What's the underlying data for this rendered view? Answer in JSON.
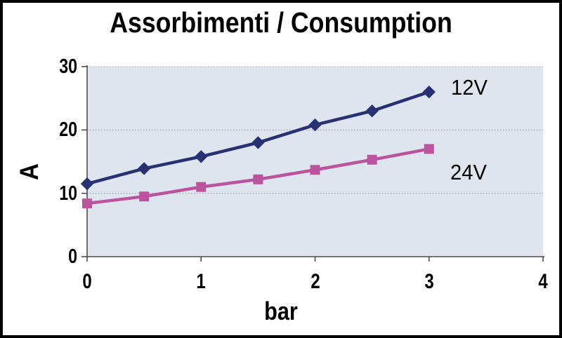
{
  "title": "Assorbimenti / Consumption",
  "colors": {
    "frame_border": "#000000",
    "background": "#ffffff",
    "plot_background": "#dfe5ee",
    "gridline": "#999999",
    "axis": "#4d4d4d",
    "text": "#000000",
    "series_12v": "#283173",
    "series_24v": "#bb549e"
  },
  "chart_data": {
    "type": "line",
    "title": "Assorbimenti / Consumption",
    "xlabel": "bar",
    "ylabel": "A",
    "xlim": [
      0,
      4
    ],
    "ylim": [
      0,
      30
    ],
    "x_ticks": [
      "0",
      "1",
      "2",
      "3",
      "4"
    ],
    "x_tick_values": [
      0,
      1,
      2,
      3,
      4
    ],
    "y_ticks": [
      "0",
      "10",
      "20",
      "30"
    ],
    "y_tick_values": [
      0,
      10,
      20,
      30
    ],
    "grid": "dotted horizontal gridlines at 10, 20, 30",
    "legend_position": "labels inside plot, right of line ends",
    "x": [
      0,
      0.5,
      1,
      1.5,
      2,
      2.5,
      3
    ],
    "series": [
      {
        "name": "12V",
        "color": "#283173",
        "marker": "diamond",
        "values": [
          11.5,
          13.9,
          15.8,
          18.0,
          20.8,
          23.0,
          26.0
        ]
      },
      {
        "name": "24V",
        "color": "#bb549e",
        "marker": "square",
        "values": [
          8.4,
          9.5,
          11.0,
          12.2,
          13.7,
          15.3,
          17.0
        ]
      }
    ]
  }
}
